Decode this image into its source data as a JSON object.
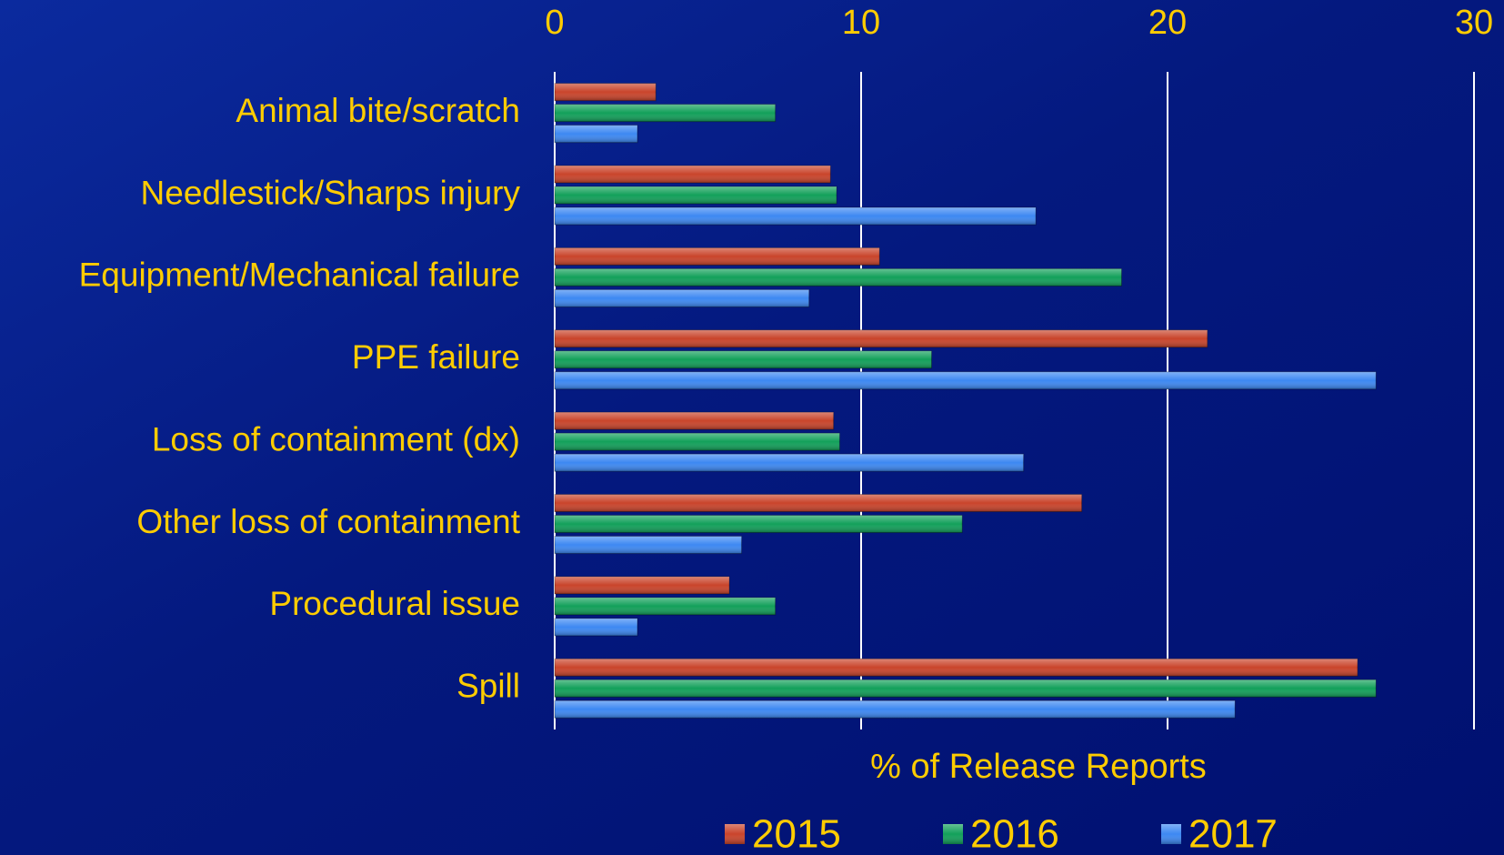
{
  "chart_data": {
    "type": "bar",
    "orientation": "horizontal",
    "xlabel": "% of Release Reports",
    "categories": [
      "Animal bite/scratch",
      "Needlestick/Sharps injury",
      "Equipment/Mechanical failure",
      "PPE failure",
      "Loss of containment (dx)",
      "Other loss of containment",
      "Procedural issue",
      "Spill"
    ],
    "series": [
      {
        "name": "2015",
        "color": "#c9442b",
        "values": [
          3.3,
          9.0,
          10.6,
          21.3,
          9.1,
          17.2,
          5.7,
          26.2
        ]
      },
      {
        "name": "2016",
        "color": "#12a05a",
        "values": [
          7.2,
          9.2,
          18.5,
          12.3,
          9.3,
          13.3,
          7.2,
          26.8
        ]
      },
      {
        "name": "2017",
        "color": "#3d88f2",
        "values": [
          2.7,
          15.7,
          8.3,
          26.8,
          15.3,
          6.1,
          2.7,
          22.2
        ]
      }
    ],
    "xlim": [
      0,
      30
    ],
    "xticks": [
      0,
      10,
      20,
      30
    ],
    "grid": true,
    "legend": "bottom"
  }
}
